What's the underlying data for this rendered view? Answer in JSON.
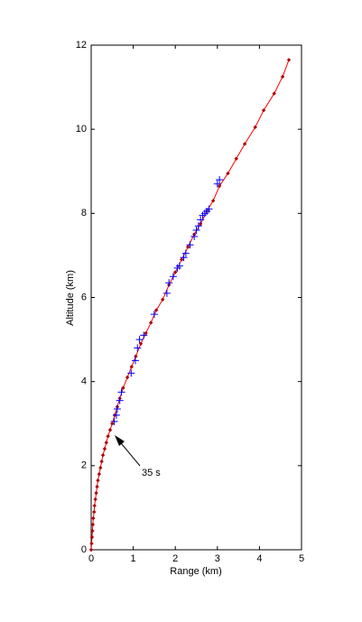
{
  "chart_data": {
    "type": "line",
    "x_label": "Range (km)",
    "y_label": "Altitude (km)",
    "annotation": "35 s",
    "xlim": [
      0,
      5
    ],
    "xticks": [
      0,
      1,
      2,
      3,
      4,
      5
    ],
    "ylim": [
      0,
      12
    ],
    "yticks": [
      0,
      2,
      4,
      6,
      8,
      10,
      12
    ],
    "series": [
      {
        "color": "#ff0000",
        "marker_color": "#b00000",
        "marker": "diamond",
        "line": true,
        "x": [
          0,
          0.01,
          0.02,
          0.03,
          0.04,
          0.05,
          0.07,
          0.08,
          0.1,
          0.12,
          0.14,
          0.16,
          0.19,
          0.22,
          0.25,
          0.28,
          0.32,
          0.36,
          0.4,
          0.45,
          0.5,
          0.56,
          0.62,
          0.68,
          0.76,
          0.86,
          0.96,
          1.06,
          1.18,
          1.3,
          1.42,
          1.55,
          1.7,
          1.85,
          2.0,
          2.15,
          2.3,
          2.45,
          2.6,
          2.75,
          2.9,
          3.05,
          3.25,
          3.45,
          3.65,
          3.9,
          4.1,
          4.35,
          4.55,
          4.7
        ],
        "values": [
          0,
          0.15,
          0.3,
          0.45,
          0.6,
          0.75,
          0.9,
          1.05,
          1.2,
          1.35,
          1.5,
          1.65,
          1.8,
          1.95,
          2.1,
          2.25,
          2.4,
          2.55,
          2.7,
          2.85,
          3.0,
          3.2,
          3.4,
          3.6,
          3.85,
          4.1,
          4.35,
          4.6,
          4.9,
          5.15,
          5.4,
          5.7,
          5.95,
          6.3,
          6.6,
          6.9,
          7.2,
          7.5,
          7.75,
          8.05,
          8.3,
          8.65,
          8.95,
          9.3,
          9.65,
          10.05,
          10.45,
          10.85,
          11.25,
          11.65
        ]
      },
      {
        "color": "#0000ff",
        "marker": "plus",
        "line": false,
        "x": [
          0.55,
          0.6,
          0.62,
          0.68,
          0.72,
          0.95,
          1.05,
          1.1,
          1.15,
          1.25,
          1.5,
          1.8,
          1.85,
          1.95,
          2.05,
          2.1,
          2.2,
          2.25,
          2.35,
          2.45,
          2.5,
          2.55,
          2.6,
          2.65,
          2.7,
          2.75,
          2.8,
          3.0,
          3.05
        ],
        "values": [
          3.05,
          3.2,
          3.35,
          3.55,
          3.75,
          4.2,
          4.5,
          4.8,
          5.0,
          5.1,
          5.6,
          6.1,
          6.35,
          6.5,
          6.7,
          6.75,
          6.95,
          7.05,
          7.25,
          7.45,
          7.6,
          7.7,
          7.85,
          7.95,
          8.0,
          8.05,
          8.1,
          8.7,
          8.8
        ]
      }
    ]
  }
}
